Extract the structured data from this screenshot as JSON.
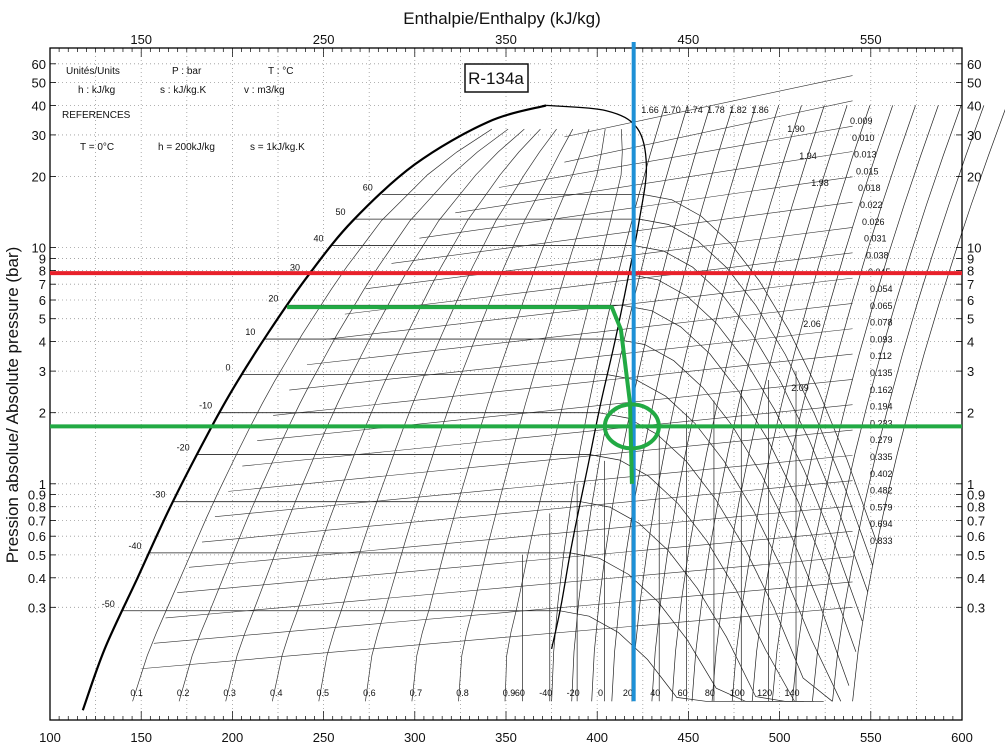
{
  "chart_data": {
    "type": "line",
    "chart_subtype": "pressure-enthalpy diagram (log p-h)",
    "title": "R-134a",
    "xlabel_top": "Enthalpie/Enthalpy (kJ/kg)",
    "ylabel": "Pression absolue/ Absolute pressure (bar)",
    "xlim": [
      100,
      600
    ],
    "ylim": [
      0.1,
      70
    ],
    "yscale": "log",
    "grid": true,
    "x_ticks_bottom": [
      100,
      150,
      200,
      250,
      300,
      350,
      400,
      450,
      500,
      550,
      600
    ],
    "x_ticks_top": [
      150,
      250,
      350,
      450,
      550
    ],
    "y_ticks": [
      {
        "value": 60,
        "label": "60"
      },
      {
        "value": 50,
        "label": "50"
      },
      {
        "value": 40,
        "label": "40"
      },
      {
        "value": 30,
        "label": "30"
      },
      {
        "value": 20,
        "label": "20"
      },
      {
        "value": 10,
        "label": "10"
      },
      {
        "value": 9,
        "label": "9"
      },
      {
        "value": 8,
        "label": "8"
      },
      {
        "value": 7,
        "label": "7"
      },
      {
        "value": 6,
        "label": "6"
      },
      {
        "value": 5,
        "label": "5"
      },
      {
        "value": 4,
        "label": "4"
      },
      {
        "value": 3,
        "label": "3"
      },
      {
        "value": 2,
        "label": "2"
      },
      {
        "value": 1,
        "label": "1"
      },
      {
        "value": 0.9,
        "label": "0.9"
      },
      {
        "value": 0.8,
        "label": "0.8"
      },
      {
        "value": 0.7,
        "label": "0.7"
      },
      {
        "value": 0.6,
        "label": "0.6"
      },
      {
        "value": 0.5,
        "label": "0.5"
      },
      {
        "value": 0.4,
        "label": "0.4"
      },
      {
        "value": 0.3,
        "label": "0.3"
      }
    ],
    "info_box": {
      "units_title": "Unités/Units",
      "p_unit": "P : bar",
      "t_unit": "T : °C",
      "h_unit": "h : kJ/kg",
      "s_unit": "s : kJ/kg.K",
      "v_unit": "v : m3/kg",
      "references_title": "REFERENCES",
      "ref_t": "T = 0°C",
      "ref_h": "h = 200kJ/kg",
      "ref_s": "s = 1kJ/kg.K"
    },
    "saturation_dome": {
      "liquid": [
        [
          118,
          0.11
        ],
        [
          130,
          0.2
        ],
        [
          148,
          0.4
        ],
        [
          166,
          0.8
        ],
        [
          186,
          1.6
        ],
        [
          200,
          2.5
        ],
        [
          220,
          4.4
        ],
        [
          242,
          7.7
        ],
        [
          266,
          13
        ],
        [
          300,
          22.5
        ],
        [
          340,
          34
        ],
        [
          372,
          40
        ]
      ],
      "vapor": [
        [
          372,
          40
        ],
        [
          405,
          38
        ],
        [
          422,
          32
        ],
        [
          427,
          22
        ],
        [
          423,
          13
        ],
        [
          417,
          7.5
        ],
        [
          410,
          4.1
        ],
        [
          402,
          2.2
        ],
        [
          395,
          1.2
        ],
        [
          386,
          0.55
        ],
        [
          380,
          0.3
        ],
        [
          375,
          0.2
        ]
      ]
    },
    "isotherms": [
      {
        "label": "60",
        "h_liquid": 287,
        "p": 16.8
      },
      {
        "label": "50",
        "h_liquid": 272,
        "p": 13.2
      },
      {
        "label": "40",
        "h_liquid": 257,
        "p": 10.2
      },
      {
        "label": "30",
        "h_liquid": 243,
        "p": 7.7
      },
      {
        "label": "20",
        "h_liquid": 229,
        "p": 5.7
      },
      {
        "label": "10",
        "h_liquid": 214,
        "p": 4.1
      },
      {
        "label": "0",
        "h_liquid": 200,
        "p": 2.9
      },
      {
        "label": "-10",
        "h_liquid": 187,
        "p": 2.0
      },
      {
        "label": "-20",
        "h_liquid": 174,
        "p": 1.33
      },
      {
        "label": "-30",
        "h_liquid": 161,
        "p": 0.84
      },
      {
        "label": "-40",
        "h_liquid": 149,
        "p": 0.51
      },
      {
        "label": "-50",
        "h_liquid": 137,
        "p": 0.29
      }
    ],
    "quality_labels": [
      "0.1",
      "0.2",
      "0.3",
      "0.4",
      "0.5",
      "0.6",
      "0.7",
      "0.8",
      "0.9"
    ],
    "bottom_temperature_labels": [
      "-60",
      "-40",
      "-20",
      "0",
      "20",
      "40",
      "60",
      "80",
      "100",
      "120",
      "140"
    ],
    "entropy_labels_top": [
      "1.66",
      "1.70",
      "1.74",
      "1.78",
      "1.82",
      "1.86",
      "1.90",
      "1.94",
      "1.98"
    ],
    "entropy_labels_mid": [
      "2.06",
      "2.09"
    ],
    "specific_volume_labels": [
      "0.009",
      "0.010",
      "0.013",
      "0.015",
      "0.018",
      "0.022",
      "0.026",
      "0.031",
      "0.038",
      "0.045",
      "0.054",
      "0.065",
      "0.078",
      "0.093",
      "0.112",
      "0.135",
      "0.162",
      "0.194",
      "0.233",
      "0.279",
      "0.335",
      "0.402",
      "0.482",
      "0.579",
      "0.694",
      "0.833"
    ],
    "overlays": [
      {
        "name": "high-pressure-line",
        "color": "#e8202a",
        "type": "horizontal",
        "p": 7.8
      },
      {
        "name": "low-pressure-line",
        "color": "#22aa44",
        "type": "horizontal",
        "p": 1.75
      },
      {
        "name": "enthalpy-marker-line",
        "color": "#1e90d6",
        "type": "vertical",
        "h": 420
      },
      {
        "name": "expansion-path",
        "color": "#22aa44",
        "type": "path",
        "points": [
          [
            230,
            5.6
          ],
          [
            408,
            5.6
          ],
          [
            413,
            4.5
          ],
          [
            418,
            2.2
          ],
          [
            419,
            1.0
          ]
        ]
      },
      {
        "name": "state-point-circle",
        "color": "#22aa44",
        "type": "ellipse",
        "h": 419,
        "p": 1.75
      }
    ]
  }
}
